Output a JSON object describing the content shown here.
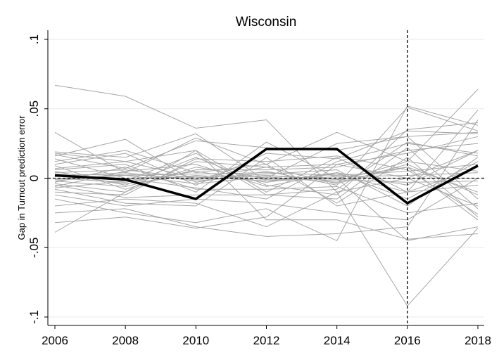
{
  "chart_data": {
    "type": "line",
    "title": "Wisconsin",
    "xlabel": "",
    "ylabel": "Gap in Turnout prediction error",
    "x": [
      2006,
      2008,
      2010,
      2012,
      2014,
      2016,
      2018
    ],
    "xlim": [
      2006,
      2018
    ],
    "ylim": [
      -0.1,
      0.1
    ],
    "x_ticks": [
      2006,
      2008,
      2010,
      2012,
      2014,
      2016,
      2018
    ],
    "x_tick_labels": [
      "2006",
      "2008",
      "2010",
      "2012",
      "2014",
      "2016",
      "2018"
    ],
    "y_ticks": [
      -0.1,
      -0.05,
      0,
      0.05,
      0.1
    ],
    "y_tick_labels": [
      "-.1",
      "-.05",
      "0",
      ".05",
      ".1"
    ],
    "grid": true,
    "legend": "none",
    "reference_lines": {
      "horizontal_y": 0,
      "vertical_x": 2016,
      "style": "dashed"
    },
    "colors": {
      "treated": "#000000",
      "placebo": "#a6a6a6",
      "grid": "#eaeaea"
    },
    "treated": {
      "values": [
        0.002,
        -0.001,
        -0.015,
        0.021,
        0.021,
        -0.018,
        0.009
      ]
    },
    "placebos": [
      {
        "values": [
          0.067,
          0.059,
          0.036,
          0.042,
          -0.01,
          0.0,
          -0.02
        ]
      },
      {
        "values": [
          0.033,
          0.004,
          0.029,
          0.01,
          0.033,
          0.012,
          0.064
        ]
      },
      {
        "values": [
          0.019,
          0.015,
          0.032,
          -0.002,
          0.0,
          -0.045,
          -0.035
        ]
      },
      {
        "values": [
          0.018,
          0.012,
          0.02,
          -0.01,
          0.015,
          -0.01,
          0.049
        ]
      },
      {
        "values": [
          0.016,
          0.028,
          -0.003,
          0.005,
          -0.005,
          0.051,
          0.034
        ]
      },
      {
        "values": [
          0.014,
          0.0,
          -0.007,
          -0.015,
          0.012,
          0.025,
          0.018
        ]
      },
      {
        "values": [
          0.012,
          0.02,
          0.004,
          0.01,
          -0.018,
          0.015,
          -0.028
        ]
      },
      {
        "values": [
          0.009,
          -0.008,
          0.008,
          0.0,
          0.025,
          0.03,
          -0.015
        ]
      },
      {
        "values": [
          0.006,
          0.01,
          -0.01,
          0.026,
          0.0,
          0.008,
          -0.03
        ]
      },
      {
        "values": [
          0.005,
          -0.005,
          0.015,
          -0.005,
          -0.012,
          0.035,
          0.04
        ]
      },
      {
        "values": [
          0.004,
          0.006,
          0.0,
          0.003,
          0.006,
          -0.02,
          0.015
        ]
      },
      {
        "values": [
          0.003,
          0.002,
          0.003,
          0.004,
          0.002,
          0.005,
          0.01
        ]
      },
      {
        "values": [
          0.002,
          0.0,
          0.001,
          -0.002,
          0.003,
          -0.01,
          -0.005
        ]
      },
      {
        "values": [
          0.001,
          0.004,
          -0.002,
          0.002,
          -0.002,
          0.012,
          0.005
        ]
      },
      {
        "values": [
          0.0,
          -0.003,
          0.005,
          -0.003,
          0.004,
          -0.005,
          0.02
        ]
      },
      {
        "values": [
          -0.001,
          0.002,
          -0.004,
          0.001,
          -0.003,
          0.008,
          -0.01
        ]
      },
      {
        "values": [
          -0.002,
          -0.006,
          0.006,
          0.006,
          0.008,
          0.02,
          0.025
        ]
      },
      {
        "values": [
          -0.003,
          0.008,
          -0.008,
          -0.008,
          -0.006,
          -0.025,
          -0.018
        ]
      },
      {
        "values": [
          -0.004,
          -0.01,
          0.012,
          0.008,
          0.01,
          0.018,
          0.03
        ]
      },
      {
        "values": [
          -0.005,
          -0.014,
          -0.012,
          -0.012,
          -0.015,
          0.022,
          -0.022
        ]
      },
      {
        "values": [
          -0.006,
          0.005,
          0.01,
          -0.006,
          0.004,
          -0.015,
          0.012
        ]
      },
      {
        "values": [
          -0.008,
          -0.018,
          -0.02,
          0.015,
          -0.02,
          -0.01,
          0.008
        ]
      },
      {
        "values": [
          -0.01,
          -0.012,
          0.014,
          0.012,
          0.016,
          0.006,
          -0.026
        ]
      },
      {
        "values": [
          -0.012,
          -0.02,
          -0.015,
          -0.018,
          -0.025,
          -0.03,
          0.0
        ]
      },
      {
        "values": [
          -0.015,
          -0.025,
          -0.032,
          -0.022,
          -0.045,
          0.052,
          0.038
        ]
      },
      {
        "values": [
          -0.02,
          -0.015,
          -0.018,
          -0.035,
          -0.01,
          -0.092,
          -0.036
        ]
      },
      {
        "values": [
          -0.025,
          -0.022,
          -0.035,
          -0.042,
          -0.04,
          -0.035,
          0.042
        ]
      },
      {
        "values": [
          -0.032,
          -0.028,
          -0.036,
          -0.028,
          0.01,
          0.0,
          0.02
        ]
      },
      {
        "values": [
          -0.039,
          -0.01,
          0.02,
          -0.03,
          -0.03,
          -0.044,
          -0.04
        ]
      },
      {
        "values": [
          0.017,
          0.007,
          0.027,
          0.022,
          0.02,
          0.03,
          0.033
        ]
      },
      {
        "values": [
          0.01,
          0.018,
          -0.005,
          0.018,
          0.014,
          0.034,
          0.032
        ]
      },
      {
        "values": [
          -0.007,
          -0.002,
          0.018,
          -0.012,
          -0.008,
          0.026,
          0.016
        ]
      },
      {
        "values": [
          0.007,
          0.012,
          0.0,
          0.008,
          -0.004,
          0.01,
          -0.012
        ]
      },
      {
        "values": [
          0.0,
          0.0,
          0.0,
          0.0,
          0.0,
          0.0,
          0.0
        ]
      },
      {
        "values": [
          0.003,
          -0.004,
          0.002,
          -0.001,
          0.001,
          0.002,
          0.004
        ]
      },
      {
        "values": [
          -0.002,
          0.003,
          -0.001,
          0.002,
          -0.001,
          -0.003,
          -0.002
        ]
      }
    ]
  }
}
